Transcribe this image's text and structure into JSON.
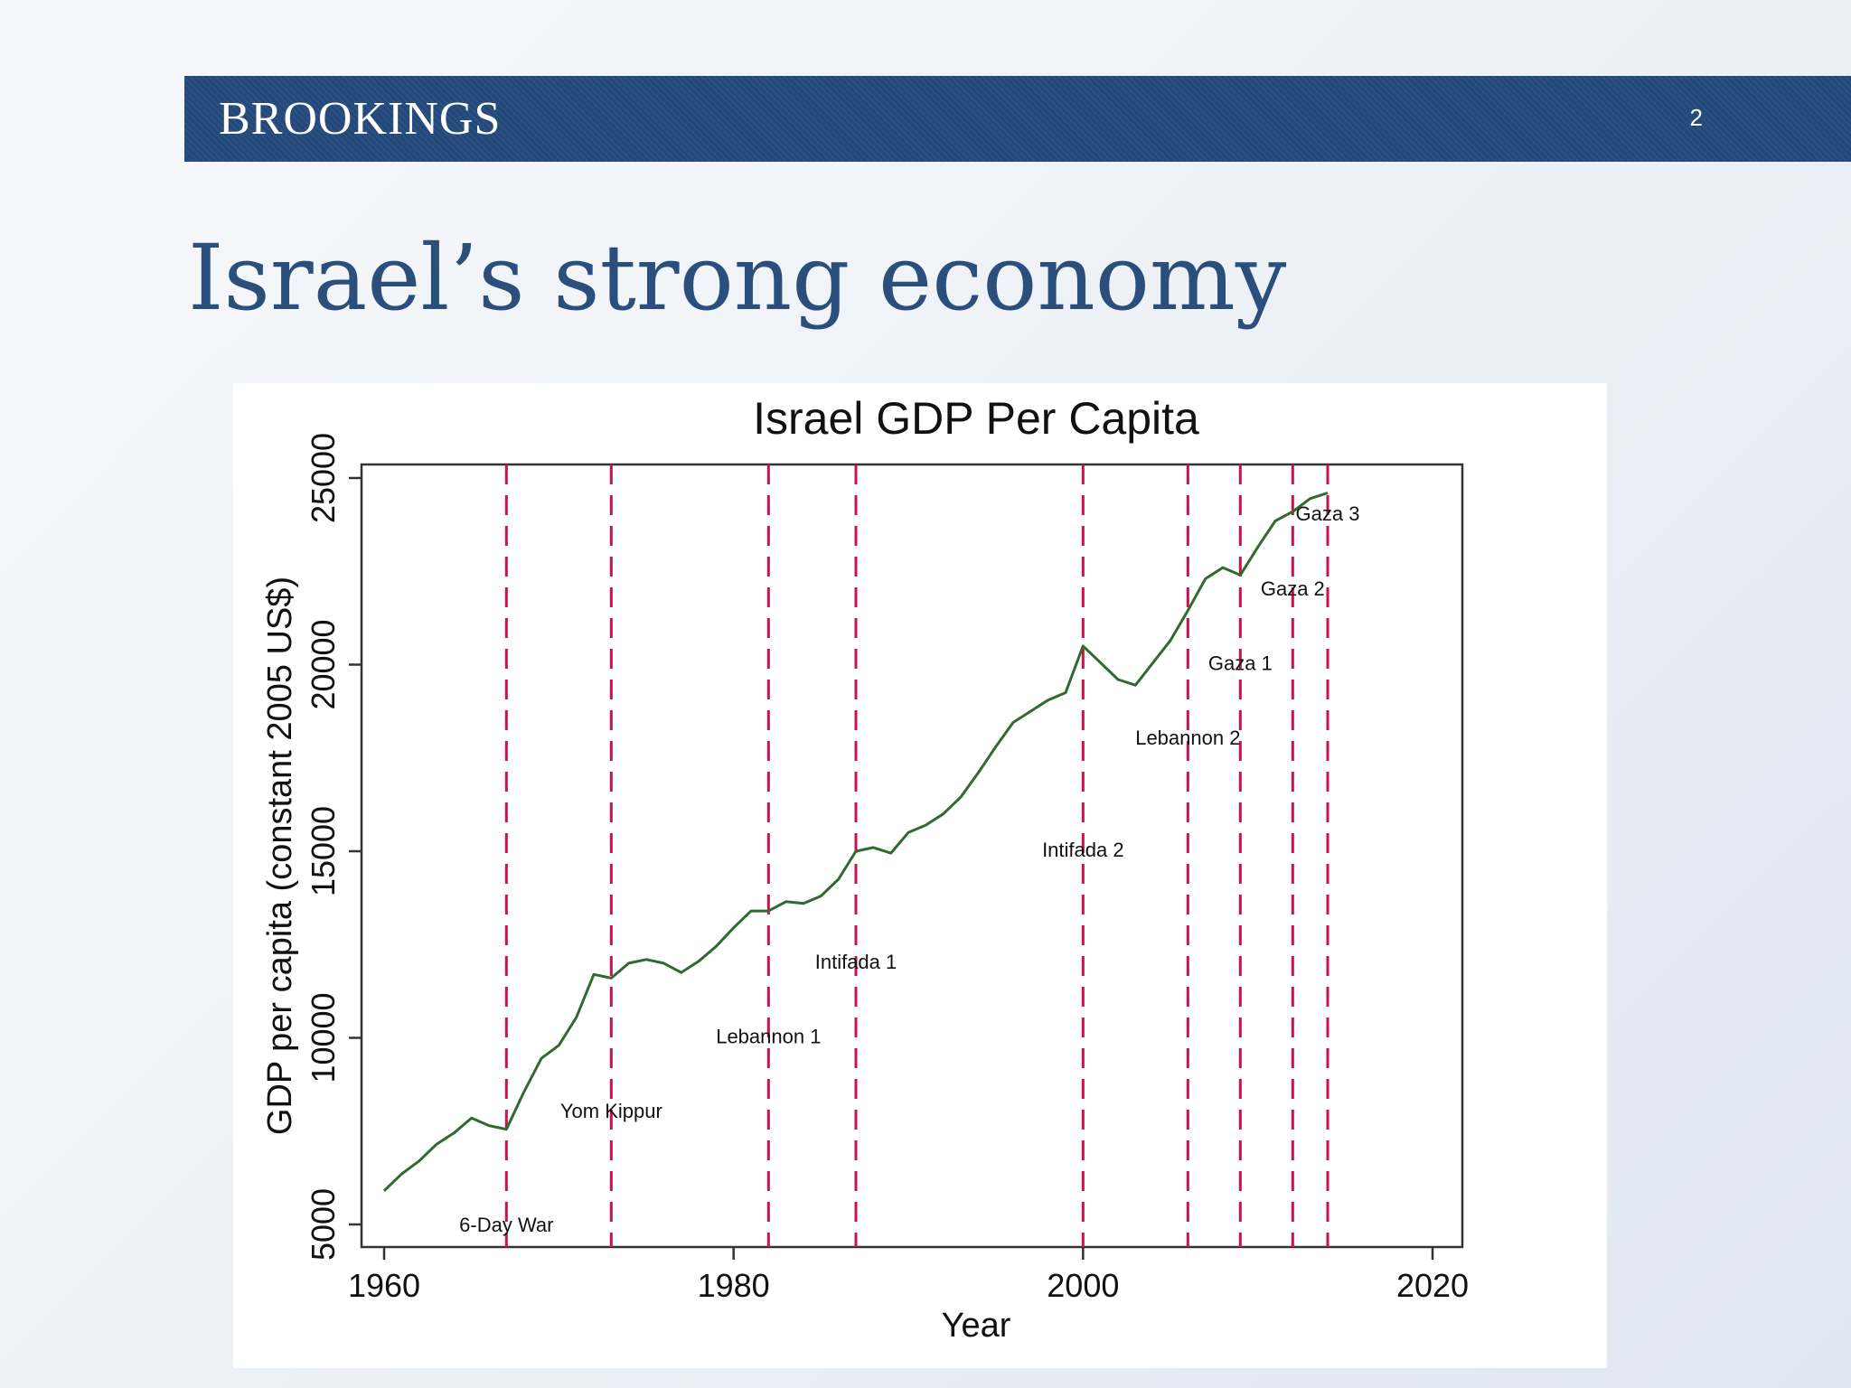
{
  "header": {
    "logo_text": "BROOKINGS",
    "page_number": "2",
    "bar_color": "#23497a"
  },
  "slide": {
    "title": "Israel’s strong economy"
  },
  "colors": {
    "series_line": "#2f6b2f",
    "event_line": "#d0104c",
    "title_text": "#2a4f7c"
  },
  "chart_data": {
    "type": "line",
    "title": "Israel GDP Per Capita",
    "xlabel": "Year",
    "ylabel": "GDP per capita (constant 2005 US$)",
    "xlim": [
      1960,
      2020
    ],
    "ylim": [
      5000,
      25000
    ],
    "x_ticks": [
      1960,
      1980,
      2000,
      2020
    ],
    "y_ticks": [
      5000,
      10000,
      15000,
      20000,
      25000
    ],
    "grid": false,
    "series": [
      {
        "x": [
          1960,
          1961,
          1962,
          1963,
          1964,
          1965,
          1966,
          1967,
          1968,
          1969,
          1970,
          1971,
          1972,
          1973,
          1974,
          1975,
          1976,
          1977,
          1978,
          1979,
          1980,
          1981,
          1982,
          1983,
          1984,
          1985,
          1986,
          1987,
          1988,
          1989,
          1990,
          1991,
          1992,
          1993,
          1994,
          1995,
          1996,
          1997,
          1998,
          1999,
          2000,
          2001,
          2002,
          2003,
          2004,
          2005,
          2006,
          2007,
          2008,
          2009,
          2010,
          2011,
          2012,
          2013,
          2014
        ],
        "y": [
          5900,
          6350,
          6700,
          7150,
          7450,
          7850,
          7650,
          7550,
          8550,
          9450,
          9800,
          10550,
          11700,
          11600,
          12000,
          12100,
          12000,
          11750,
          12050,
          12450,
          12950,
          13400,
          13400,
          13650,
          13600,
          13800,
          14250,
          15000,
          15100,
          14950,
          15500,
          15700,
          16000,
          16450,
          17100,
          17800,
          18450,
          18750,
          19050,
          19250,
          20500,
          20050,
          19600,
          19450,
          20050,
          20650,
          21450,
          22300,
          22600,
          22400,
          23150,
          23850,
          24100,
          24450,
          24600
        ]
      }
    ],
    "events": [
      {
        "label": "6-Day War",
        "year": 1967,
        "label_y": 5000
      },
      {
        "label": "Yom Kippur",
        "year": 1973,
        "label_y": 8050
      },
      {
        "label": "Lebannon 1",
        "year": 1982,
        "label_y": 10050
      },
      {
        "label": "Intifada 1",
        "year": 1987,
        "label_y": 12050
      },
      {
        "label": "Intifada 2",
        "year": 2000,
        "label_y": 15050
      },
      {
        "label": "Lebannon 2",
        "year": 2006,
        "label_y": 18050
      },
      {
        "label": "Gaza 1",
        "year": 2009,
        "label_y": 20050
      },
      {
        "label": "Gaza 2",
        "year": 2012,
        "label_y": 22050
      },
      {
        "label": "Gaza 3",
        "year": 2014,
        "label_y": 24050
      }
    ]
  }
}
